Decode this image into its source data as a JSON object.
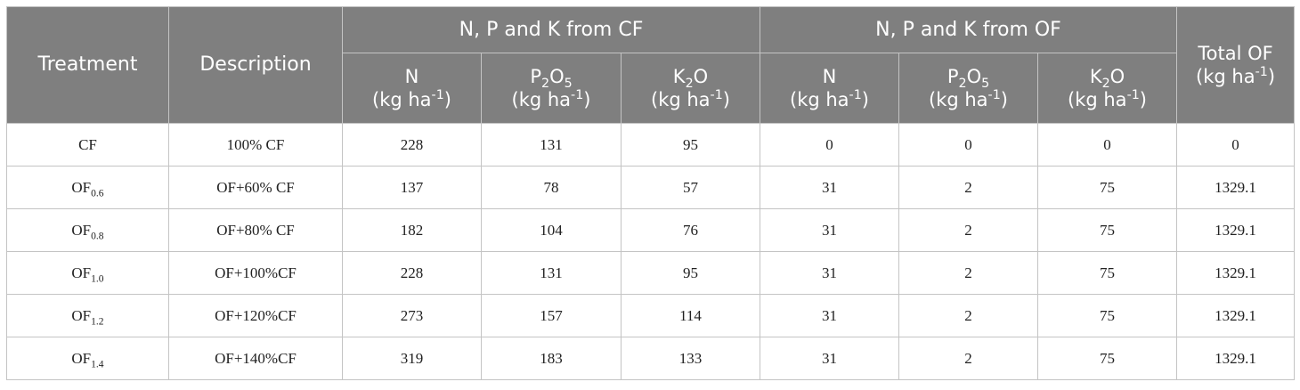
{
  "table": {
    "headers": {
      "treatment": "Treatment",
      "description": "Description",
      "cf_group": "N, P and K from CF",
      "of_group": "N, P and K from OF",
      "total_of": "Total OF",
      "n": "N",
      "p_main": "P",
      "p_sub1": "2",
      "p_mid": "O",
      "p_sub2": "5",
      "k_main": "K",
      "k_sub": "2",
      "k_end": "O",
      "unit_base": "(kg ha",
      "unit_sup": "-1",
      "unit_close": ")"
    },
    "rows": [
      {
        "treatment": "CF",
        "treatment_sub": "",
        "description": "100% CF",
        "cf_n": "228",
        "cf_p": "131",
        "cf_k": "95",
        "of_n": "0",
        "of_p": "0",
        "of_k": "0",
        "total": "0"
      },
      {
        "treatment": "OF",
        "treatment_sub": "0.6",
        "description": "OF+60% CF",
        "cf_n": "137",
        "cf_p": "78",
        "cf_k": "57",
        "of_n": "31",
        "of_p": "2",
        "of_k": "75",
        "total": "1329.1"
      },
      {
        "treatment": "OF",
        "treatment_sub": "0.8",
        "description": "OF+80% CF",
        "cf_n": "182",
        "cf_p": "104",
        "cf_k": "76",
        "of_n": "31",
        "of_p": "2",
        "of_k": "75",
        "total": "1329.1"
      },
      {
        "treatment": "OF",
        "treatment_sub": "1.0",
        "description": "OF+100%CF",
        "cf_n": "228",
        "cf_p": "131",
        "cf_k": "95",
        "of_n": "31",
        "of_p": "2",
        "of_k": "75",
        "total": "1329.1"
      },
      {
        "treatment": "OF",
        "treatment_sub": "1.2",
        "description": "OF+120%CF",
        "cf_n": "273",
        "cf_p": "157",
        "cf_k": "114",
        "of_n": "31",
        "of_p": "2",
        "of_k": "75",
        "total": "1329.1"
      },
      {
        "treatment": "OF",
        "treatment_sub": "1.4",
        "description": "OF+140%CF",
        "cf_n": "319",
        "cf_p": "183",
        "cf_k": "133",
        "of_n": "31",
        "of_p": "2",
        "of_k": "75",
        "total": "1329.1"
      }
    ]
  }
}
